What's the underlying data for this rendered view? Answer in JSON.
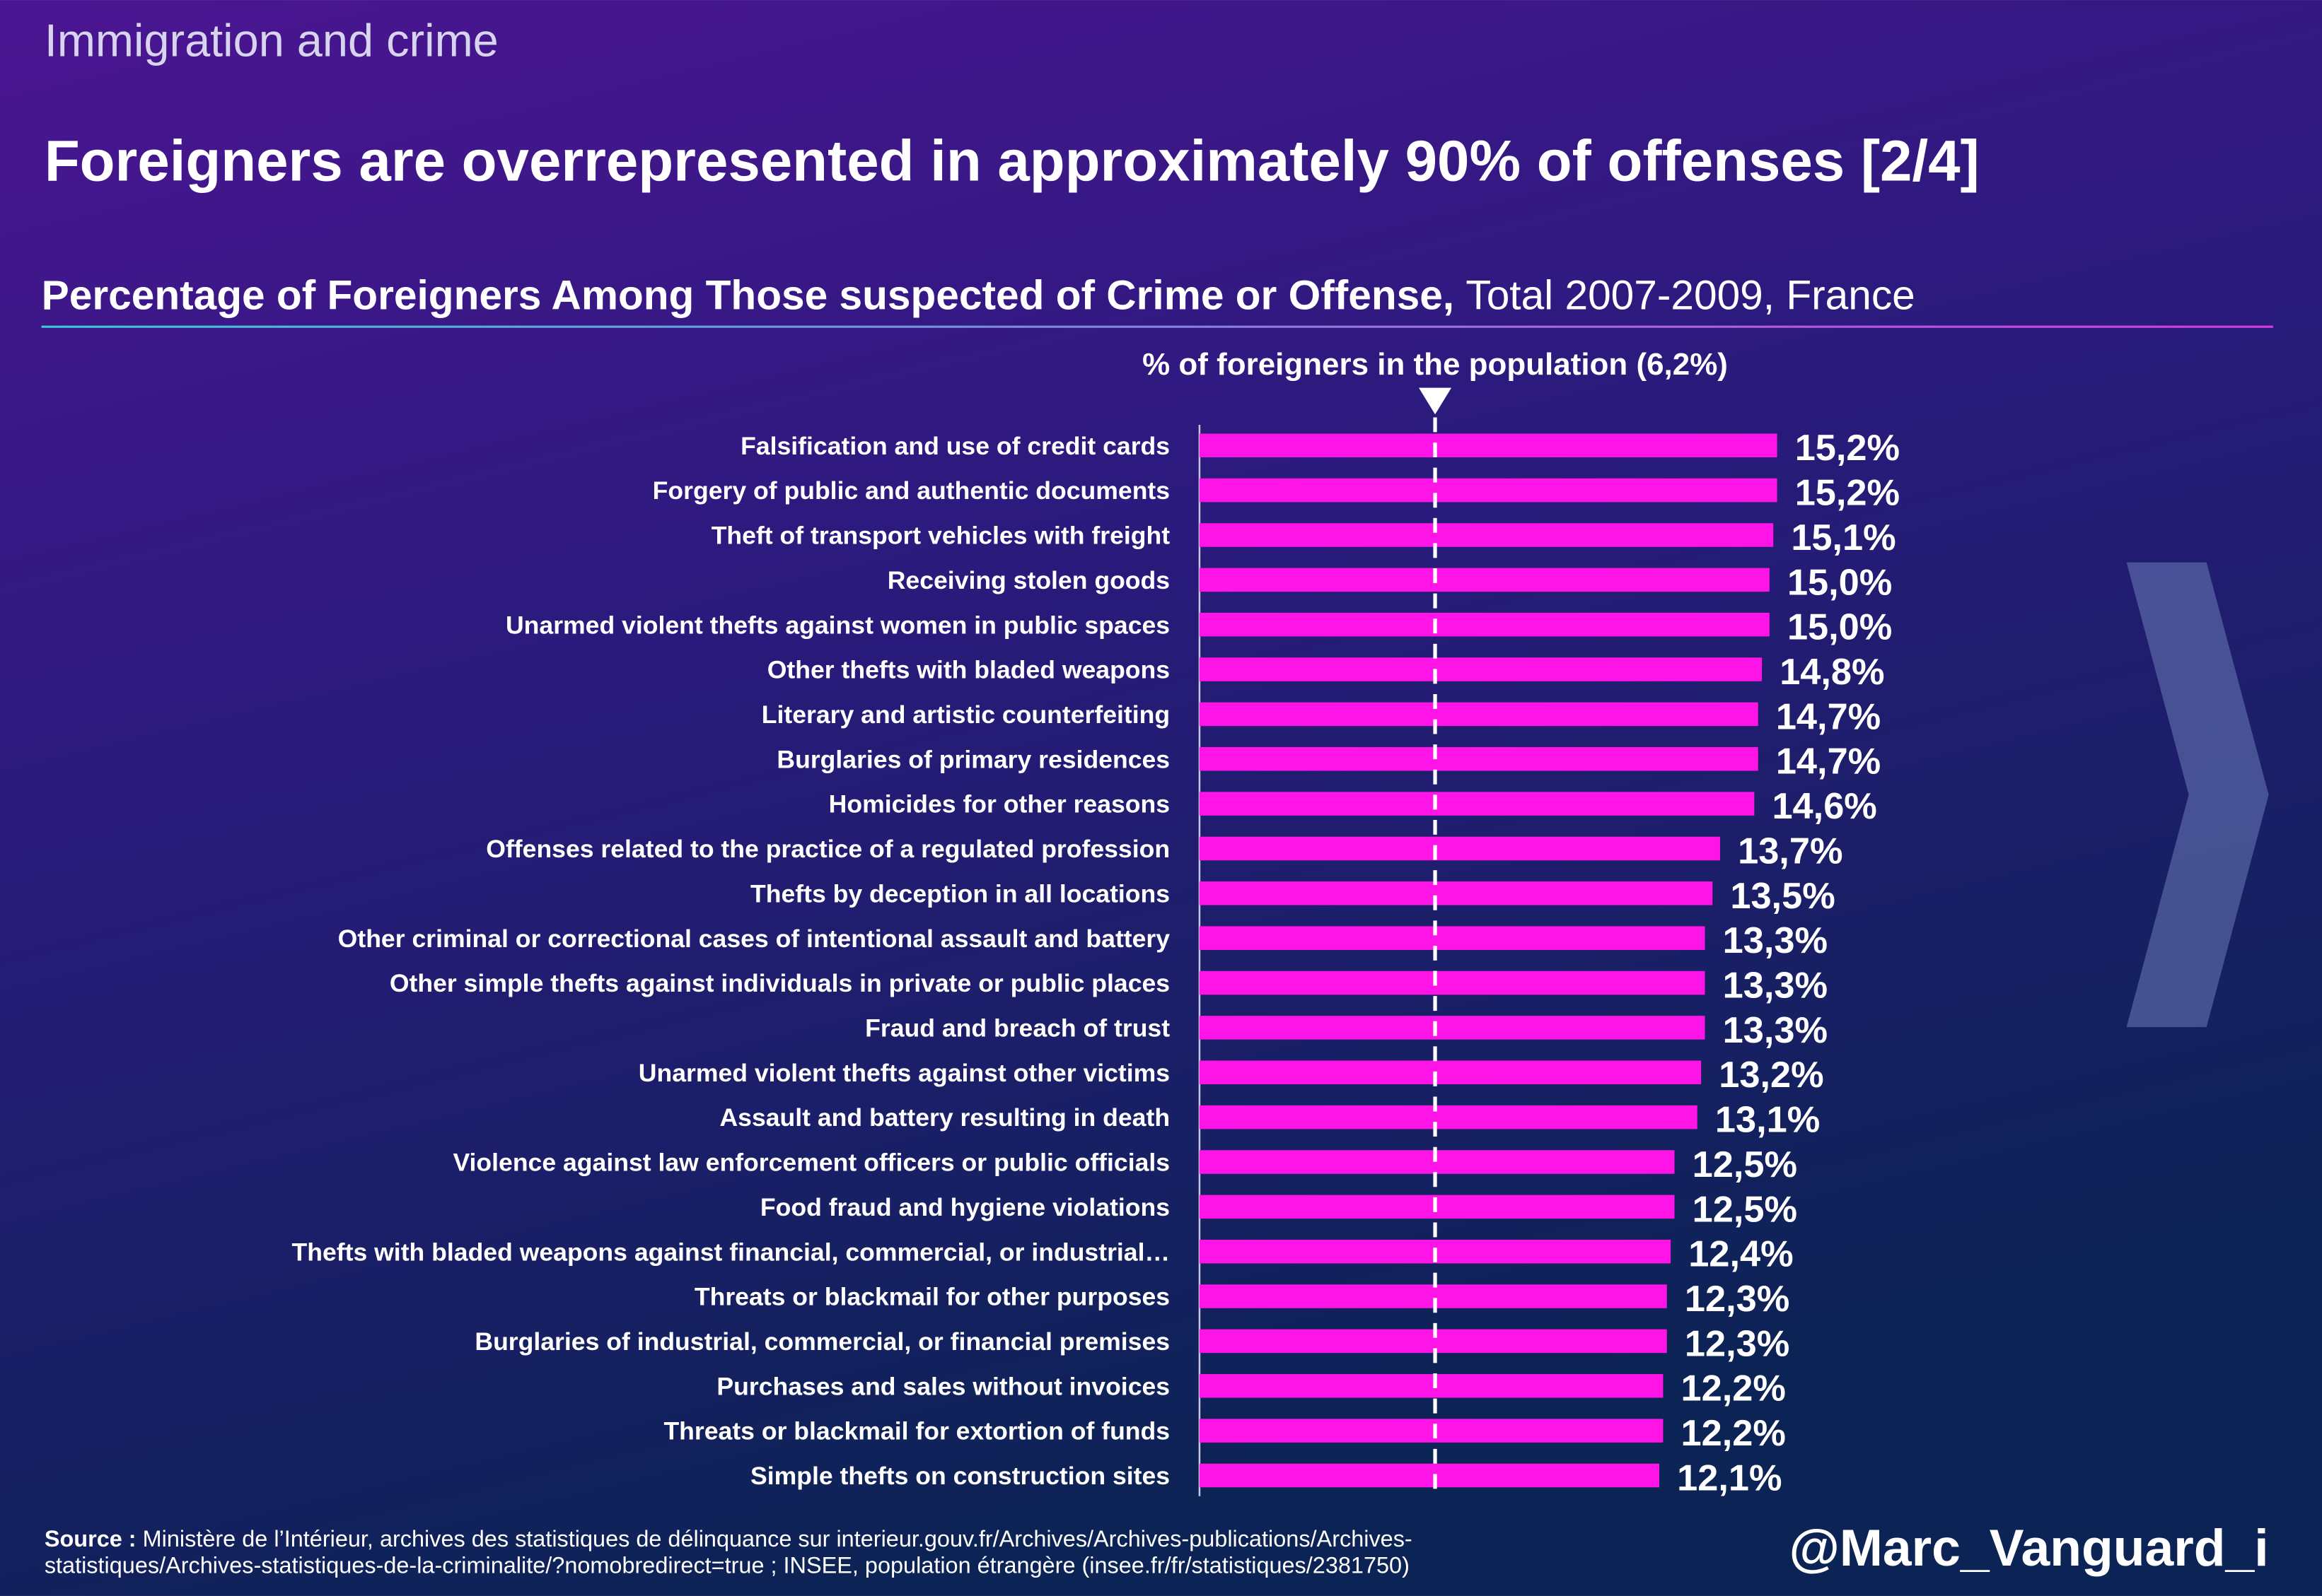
{
  "header": "Immigration and crime",
  "chart_data": {
    "type": "hbar",
    "title": "Foreigners are overrepresented in approximately 90% of offenses [2/4]",
    "subtitle": {
      "bold": "Percentage of Foreigners Among Those suspected of Crime or Offense,",
      "normal": "Total 2007-2009, France"
    },
    "categories": [
      "Falsification and use of credit cards",
      "Forgery of public and authentic documents",
      "Theft of transport vehicles with freight",
      "Receiving stolen goods",
      "Unarmed violent thefts against women in public spaces",
      "Other thefts with bladed weapons",
      "Literary and artistic counterfeiting",
      "Burglaries of primary residences",
      "Homicides for other reasons",
      "Offenses related to the practice of a regulated profession",
      "Thefts by deception in all locations",
      "Other criminal or correctional cases of intentional assault and battery",
      "Other simple thefts against individuals in private or public places",
      "Fraud and breach of trust",
      "Unarmed violent thefts against other victims",
      "Assault and battery resulting in death",
      "Violence against law enforcement officers or public officials",
      "Food fraud and hygiene violations",
      "Thefts with bladed weapons against financial, commercial, or industrial…",
      "Threats or blackmail for other purposes",
      "Burglaries of industrial, commercial, or financial premises",
      "Purchases and sales without invoices",
      "Threats or blackmail for extortion of funds",
      "Simple thefts on construction sites"
    ],
    "values": [
      15.2,
      15.2,
      15.1,
      15.0,
      15.0,
      14.8,
      14.7,
      14.7,
      14.6,
      13.7,
      13.5,
      13.3,
      13.3,
      13.3,
      13.2,
      13.1,
      12.5,
      12.5,
      12.4,
      12.3,
      12.3,
      12.2,
      12.2,
      12.1
    ],
    "value_labels": [
      "15,2%",
      "15,2%",
      "15,1%",
      "15,0%",
      "15,0%",
      "14,8%",
      "14,7%",
      "14,7%",
      "14,6%",
      "13,7%",
      "13,5%",
      "13,3%",
      "13,3%",
      "13,3%",
      "13,2%",
      "13,1%",
      "12,5%",
      "12,5%",
      "12,4%",
      "12,3%",
      "12,3%",
      "12,2%",
      "12,2%",
      "12,1%"
    ],
    "color": "#ff14e8",
    "xlim": [
      0,
      20
    ],
    "reference_line": {
      "value": 6.2,
      "label": "% of foreigners in the population (6,2%)"
    }
  },
  "source": {
    "label": "Source :",
    "lines": [
      " Ministère de l’Intérieur, archives des statistiques de délinquance sur interieur.gouv.fr/Archives/Archives-publications/Archives-",
      "statistiques/Archives-statistiques-de-la-criminalite/?nomobredirect=true ; INSEE, population étrangère (insee.fr/fr/statistiques/2381750)"
    ]
  },
  "handle": "@Marc_Vanguard_i"
}
